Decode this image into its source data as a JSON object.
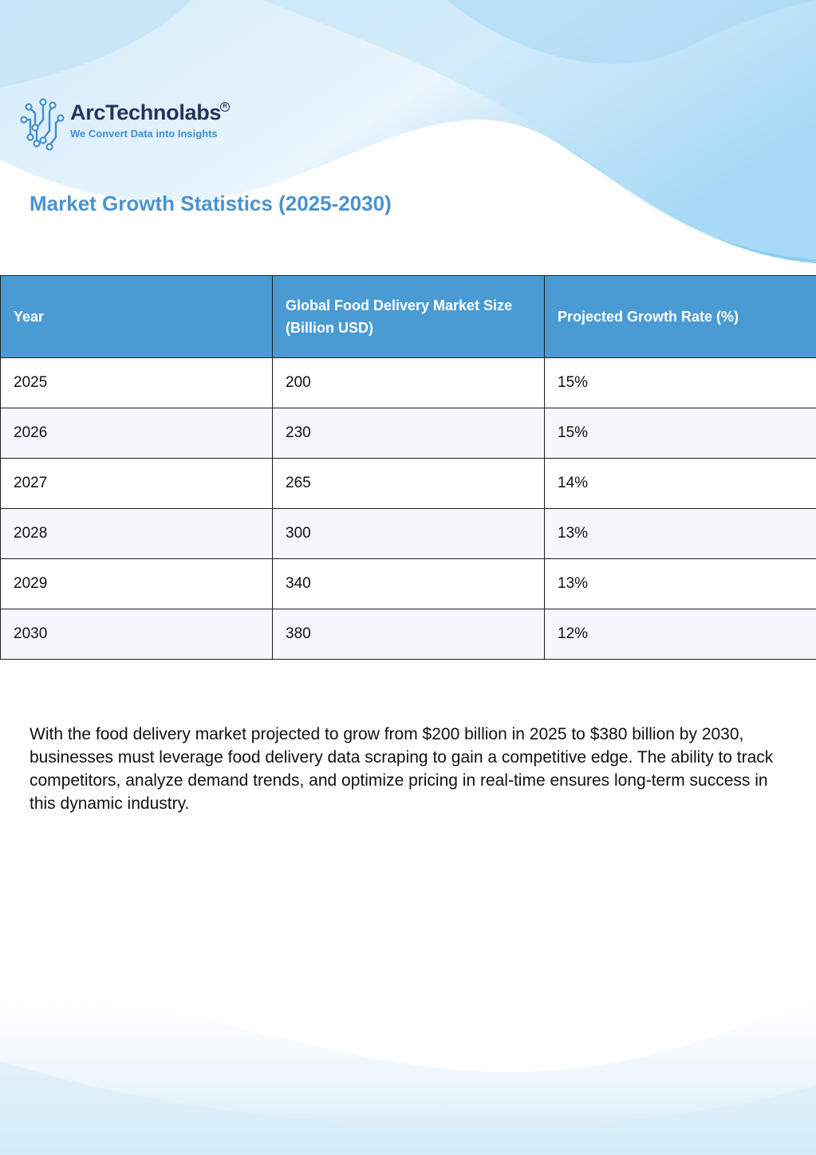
{
  "brand": {
    "name": "ArcTechnolabs",
    "tagline": "We Convert Data into Insights",
    "registered": "R"
  },
  "title": "Market Growth Statistics (2025-2030)",
  "table": {
    "headers": [
      "Year",
      "Global Food Delivery Market Size (Billion USD)",
      "Projected Growth Rate (%)"
    ],
    "rows": [
      [
        "2025",
        "200",
        "15%"
      ],
      [
        "2026",
        "230",
        "15%"
      ],
      [
        "2027",
        "265",
        "14%"
      ],
      [
        "2028",
        "300",
        "13%"
      ],
      [
        "2029",
        "340",
        "13%"
      ],
      [
        "2030",
        "380",
        "12%"
      ]
    ]
  },
  "paragraph": "With the food delivery market projected to grow from $200 billion in 2025 to $380 billion by 2030, businesses must leverage food delivery data scraping to gain a competitive edge. The ability to track competitors, analyze demand trends, and optimize pricing in real-time ensures long-term success in this dynamic industry.",
  "colors": {
    "header_bg": "#4a9bd4",
    "title": "#4b92d0",
    "brand_dark": "#23335f",
    "brand_accent": "#3f8fd3",
    "alt_row": "#f6f6fc"
  }
}
